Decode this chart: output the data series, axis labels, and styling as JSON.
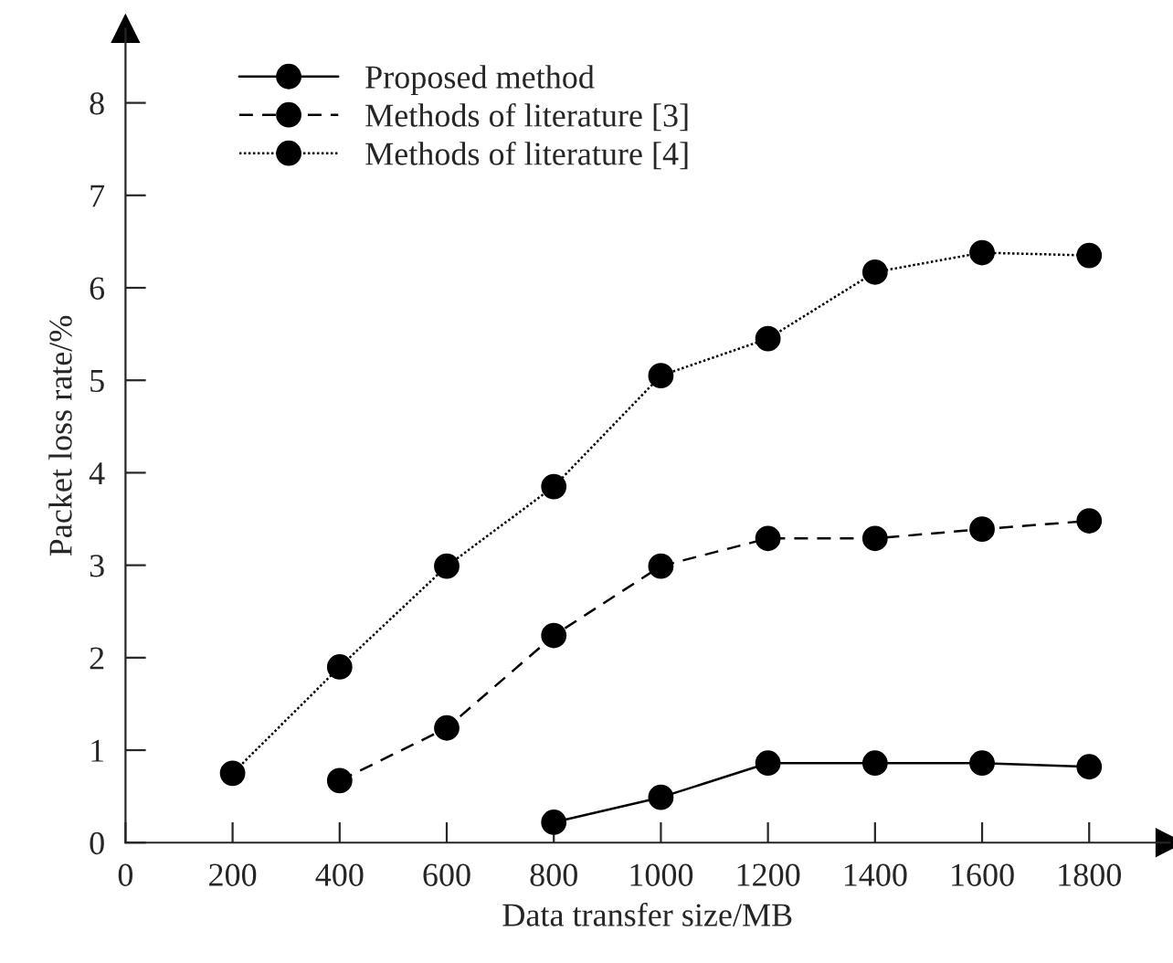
{
  "chart_data": {
    "type": "line",
    "xlabel": "Data transfer size/MB",
    "ylabel": "Packet loss rate/%",
    "x": [
      200,
      400,
      600,
      800,
      1000,
      1200,
      1400,
      1600,
      1800
    ],
    "series": [
      {
        "name": "Proposed method",
        "color": "#000000",
        "line_style": "solid",
        "values": [
          null,
          null,
          null,
          0.22,
          0.49,
          0.86,
          0.86,
          0.86,
          0.82
        ]
      },
      {
        "name": "Methods of literature [3]",
        "color": "#000000",
        "line_style": "dashed",
        "values": [
          null,
          0.67,
          1.24,
          2.24,
          2.99,
          3.29,
          3.29,
          3.39,
          3.48
        ]
      },
      {
        "name": "Methods of literature [4]",
        "color": "#000000",
        "line_style": "dotted",
        "values": [
          0.75,
          1.9,
          2.99,
          3.85,
          5.05,
          5.45,
          6.17,
          6.38,
          6.35
        ]
      }
    ],
    "xlim": [
      0,
      1950
    ],
    "xticks": [
      0,
      200,
      400,
      600,
      800,
      1000,
      1200,
      1400,
      1600,
      1800
    ],
    "ylim": [
      0,
      8.8
    ],
    "yticks": [
      0,
      1,
      2,
      3,
      4,
      5,
      6,
      7,
      8
    ],
    "marker": "circle",
    "grid": false,
    "legend": "top left"
  }
}
